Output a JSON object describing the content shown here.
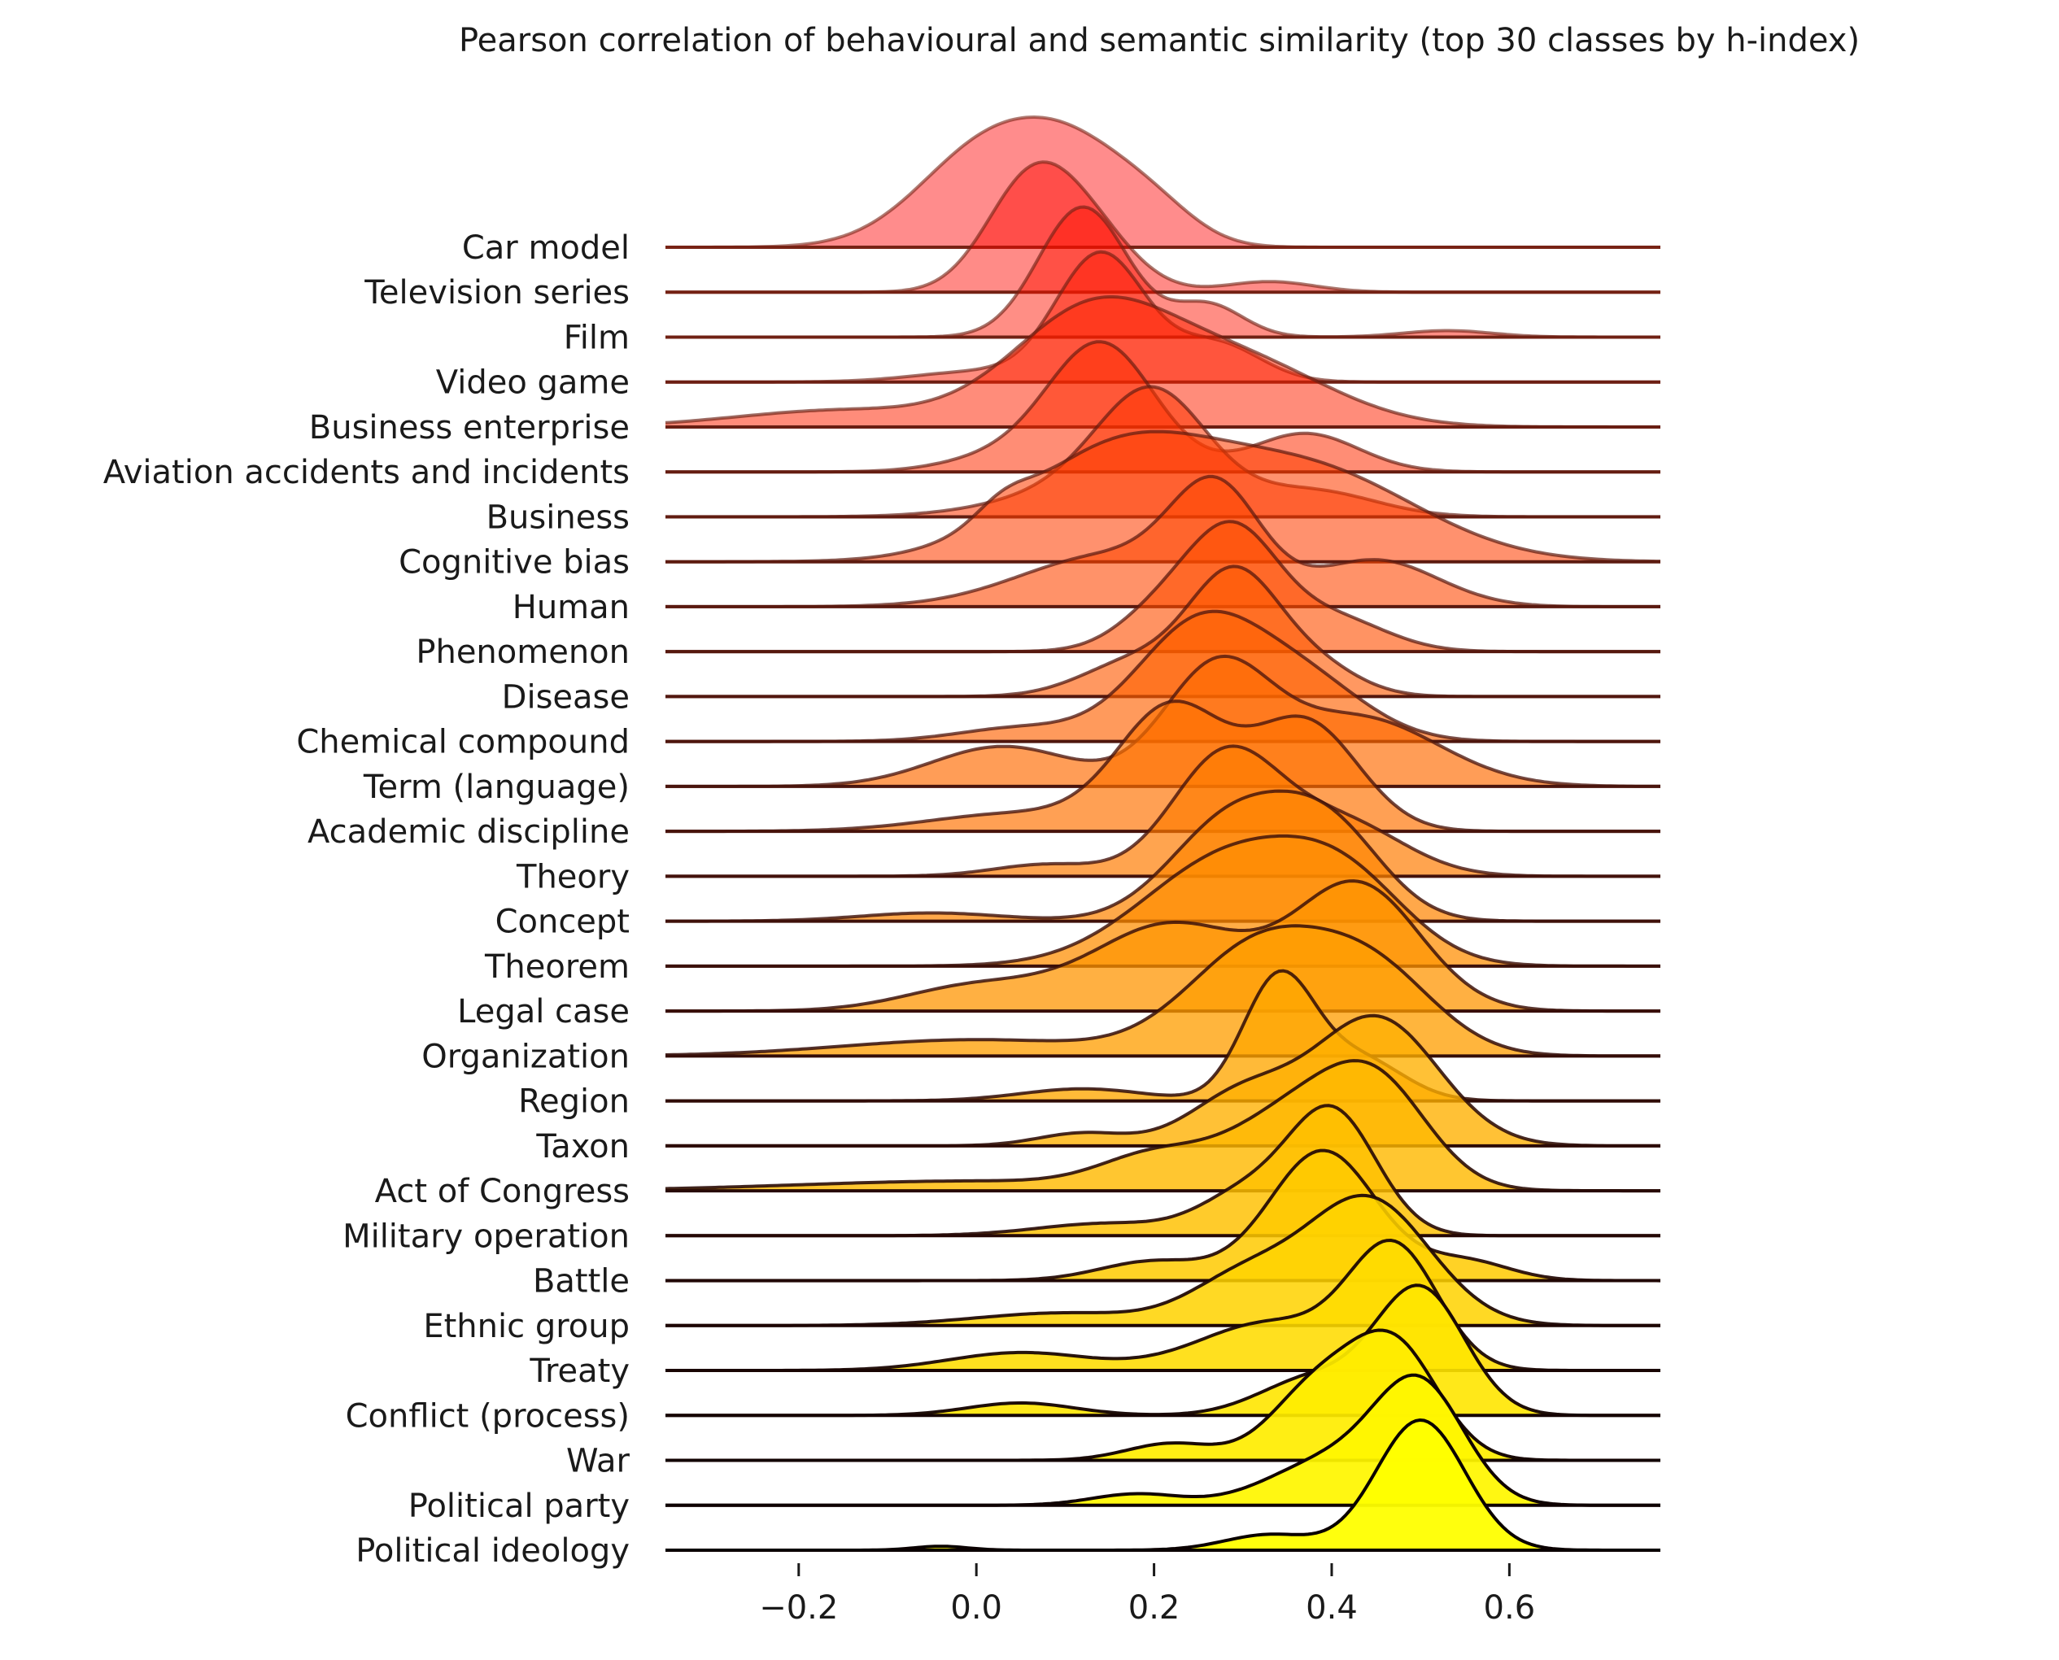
{
  "chart_data": {
    "type": "ridgeline",
    "title": "Pearson correlation of behavioural and semantic similarity (top 30 classes by h-index)",
    "xlabel": "",
    "ylabel": "",
    "xlim": [
      -0.35,
      0.77
    ],
    "xticks": [
      -0.2,
      0.0,
      0.2,
      0.4,
      0.6
    ],
    "xtick_labels": [
      "−0.2",
      "0.0",
      "0.2",
      "0.4",
      "0.6"
    ],
    "colormap": "autumn",
    "color_start": "#ff0000",
    "color_end": "#ffff00",
    "grid": false,
    "legend": "none",
    "series": [
      {
        "name": "Car model",
        "peaks": [
          [
            0.02,
            0.08,
            1.0
          ],
          [
            0.12,
            0.06,
            0.55
          ],
          [
            0.2,
            0.05,
            0.3
          ]
        ]
      },
      {
        "name": "Television series",
        "peaks": [
          [
            0.06,
            0.05,
            1.0
          ],
          [
            0.13,
            0.05,
            0.5
          ],
          [
            0.33,
            0.05,
            0.1
          ]
        ]
      },
      {
        "name": "Film",
        "peaks": [
          [
            0.12,
            0.05,
            1.0
          ],
          [
            0.26,
            0.04,
            0.25
          ],
          [
            0.53,
            0.05,
            0.05
          ]
        ]
      },
      {
        "name": "Video game",
        "peaks": [
          [
            0.14,
            0.05,
            1.0
          ],
          [
            0.27,
            0.05,
            0.3
          ],
          [
            0.0,
            0.07,
            0.08
          ]
        ]
      },
      {
        "name": "Business enterprise",
        "peaks": [
          [
            0.13,
            0.09,
            1.0
          ],
          [
            0.3,
            0.1,
            0.55
          ],
          [
            -0.15,
            0.12,
            0.15
          ]
        ]
      },
      {
        "name": "Aviation accidents and incidents",
        "peaks": [
          [
            0.14,
            0.06,
            1.0
          ],
          [
            0.37,
            0.06,
            0.3
          ],
          [
            0.02,
            0.06,
            0.1
          ]
        ]
      },
      {
        "name": "Business",
        "peaks": [
          [
            0.2,
            0.06,
            1.0
          ],
          [
            0.15,
            0.1,
            0.35
          ],
          [
            0.38,
            0.07,
            0.25
          ]
        ]
      },
      {
        "name": "Cognitive bias",
        "peaks": [
          [
            0.16,
            0.11,
            1.0
          ],
          [
            0.38,
            0.12,
            0.8
          ],
          [
            0.03,
            0.03,
            0.15
          ]
        ]
      },
      {
        "name": "Human",
        "peaks": [
          [
            0.27,
            0.05,
            1.0
          ],
          [
            0.15,
            0.1,
            0.5
          ],
          [
            0.45,
            0.07,
            0.45
          ]
        ]
      },
      {
        "name": "Phenomenon",
        "peaks": [
          [
            0.29,
            0.05,
            1.0
          ],
          [
            0.21,
            0.05,
            0.35
          ],
          [
            0.4,
            0.06,
            0.3
          ]
        ]
      },
      {
        "name": "Disease",
        "peaks": [
          [
            0.29,
            0.05,
            1.0
          ],
          [
            0.18,
            0.06,
            0.3
          ],
          [
            0.38,
            0.05,
            0.25
          ]
        ]
      },
      {
        "name": "Chemical compound",
        "peaks": [
          [
            0.25,
            0.07,
            1.0
          ],
          [
            0.37,
            0.07,
            0.5
          ],
          [
            0.05,
            0.07,
            0.12
          ]
        ]
      },
      {
        "name": "Term (language)",
        "peaks": [
          [
            0.27,
            0.06,
            1.0
          ],
          [
            0.43,
            0.09,
            0.6
          ],
          [
            0.03,
            0.08,
            0.35
          ]
        ]
      },
      {
        "name": "Academic discipline",
        "peaks": [
          [
            0.22,
            0.06,
            1.0
          ],
          [
            0.37,
            0.06,
            0.9
          ],
          [
            0.05,
            0.1,
            0.15
          ]
        ]
      },
      {
        "name": "Theory",
        "peaks": [
          [
            0.28,
            0.06,
            1.0
          ],
          [
            0.41,
            0.07,
            0.45
          ],
          [
            0.08,
            0.06,
            0.1
          ]
        ]
      },
      {
        "name": "Concept",
        "peaks": [
          [
            0.29,
            0.07,
            1.0
          ],
          [
            0.4,
            0.06,
            0.8
          ],
          [
            -0.05,
            0.08,
            0.08
          ]
        ]
      },
      {
        "name": "Theorem",
        "peaks": [
          [
            0.29,
            0.1,
            1.0
          ],
          [
            0.42,
            0.07,
            0.55
          ]
        ]
      },
      {
        "name": "Legal case",
        "peaks": [
          [
            0.43,
            0.07,
            1.0
          ],
          [
            0.22,
            0.09,
            0.7
          ],
          [
            0.0,
            0.08,
            0.2
          ]
        ]
      },
      {
        "name": "Organization",
        "peaks": [
          [
            0.32,
            0.08,
            1.0
          ],
          [
            0.45,
            0.07,
            0.7
          ],
          [
            0.0,
            0.15,
            0.15
          ]
        ]
      },
      {
        "name": "Region",
        "peaks": [
          [
            0.34,
            0.04,
            1.0
          ],
          [
            0.43,
            0.05,
            0.35
          ],
          [
            0.12,
            0.07,
            0.1
          ]
        ]
      },
      {
        "name": "Taxon",
        "peaks": [
          [
            0.45,
            0.07,
            1.0
          ],
          [
            0.3,
            0.06,
            0.4
          ],
          [
            0.12,
            0.05,
            0.1
          ]
        ]
      },
      {
        "name": "Act of Congress",
        "peaks": [
          [
            0.45,
            0.06,
            1.0
          ],
          [
            0.35,
            0.07,
            0.7
          ],
          [
            0.2,
            0.06,
            0.3
          ],
          [
            0.0,
            0.2,
            0.1
          ]
        ]
      },
      {
        "name": "Military operation",
        "peaks": [
          [
            0.4,
            0.05,
            1.0
          ],
          [
            0.3,
            0.05,
            0.3
          ],
          [
            0.15,
            0.08,
            0.1
          ]
        ]
      },
      {
        "name": "Battle",
        "peaks": [
          [
            0.39,
            0.06,
            1.0
          ],
          [
            0.55,
            0.05,
            0.15
          ],
          [
            0.2,
            0.06,
            0.15
          ]
        ]
      },
      {
        "name": "Ethnic group",
        "peaks": [
          [
            0.44,
            0.07,
            1.0
          ],
          [
            0.3,
            0.06,
            0.35
          ],
          [
            0.1,
            0.1,
            0.1
          ]
        ]
      },
      {
        "name": "Treaty",
        "peaks": [
          [
            0.47,
            0.05,
            1.0
          ],
          [
            0.33,
            0.08,
            0.4
          ],
          [
            0.05,
            0.08,
            0.15
          ]
        ]
      },
      {
        "name": "Conflict (process)",
        "peaks": [
          [
            0.5,
            0.05,
            1.0
          ],
          [
            0.38,
            0.06,
            0.3
          ],
          [
            0.05,
            0.06,
            0.1
          ]
        ]
      },
      {
        "name": "War",
        "peaks": [
          [
            0.47,
            0.05,
            1.0
          ],
          [
            0.38,
            0.05,
            0.6
          ],
          [
            0.22,
            0.05,
            0.15
          ]
        ]
      },
      {
        "name": "Political party",
        "peaks": [
          [
            0.5,
            0.05,
            1.0
          ],
          [
            0.4,
            0.07,
            0.4
          ],
          [
            0.18,
            0.05,
            0.1
          ]
        ]
      },
      {
        "name": "Political ideology",
        "peaks": [
          [
            0.5,
            0.05,
            1.0
          ],
          [
            0.33,
            0.05,
            0.12
          ],
          [
            -0.04,
            0.03,
            0.03
          ]
        ]
      }
    ]
  }
}
